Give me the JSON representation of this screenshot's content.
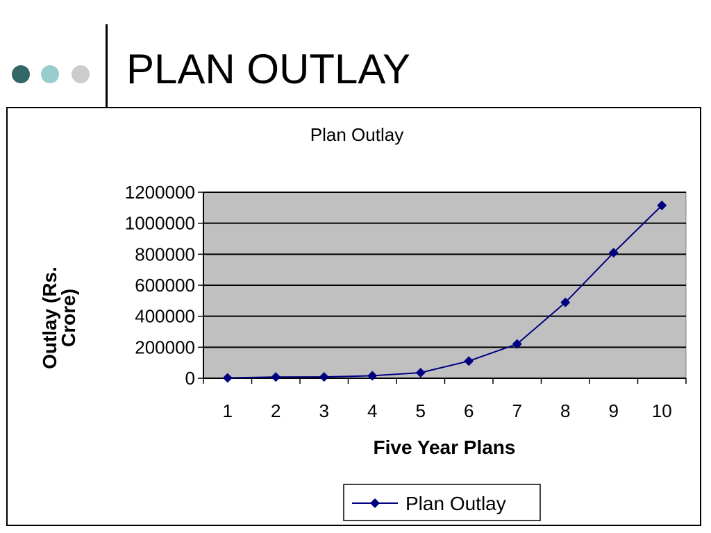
{
  "slide": {
    "title": "PLAN OUTLAY",
    "bullet_colors": [
      "#336666",
      "#99cccc",
      "#cccccc"
    ]
  },
  "chart_data": {
    "type": "line",
    "title": "Plan Outlay",
    "xlabel": "Five Year Plans",
    "ylabel_lines": [
      "Outlay (Rs.",
      "Crore)"
    ],
    "categories": [
      "1",
      "2",
      "3",
      "4",
      "5",
      "6",
      "7",
      "8",
      "9",
      "10"
    ],
    "series": [
      {
        "name": "Plan Outlay",
        "values": [
          1960,
          8000,
          8600,
          16000,
          36000,
          111000,
          221000,
          489000,
          810000,
          1115000
        ],
        "color": "#000080",
        "marker": "diamond"
      }
    ],
    "ylim": [
      0,
      1200000
    ],
    "yticks": [
      "0",
      "200000",
      "400000",
      "600000",
      "800000",
      "1000000",
      "1200000"
    ],
    "grid": true,
    "plot_background": "#c0c0c0",
    "legend": "bottom"
  }
}
